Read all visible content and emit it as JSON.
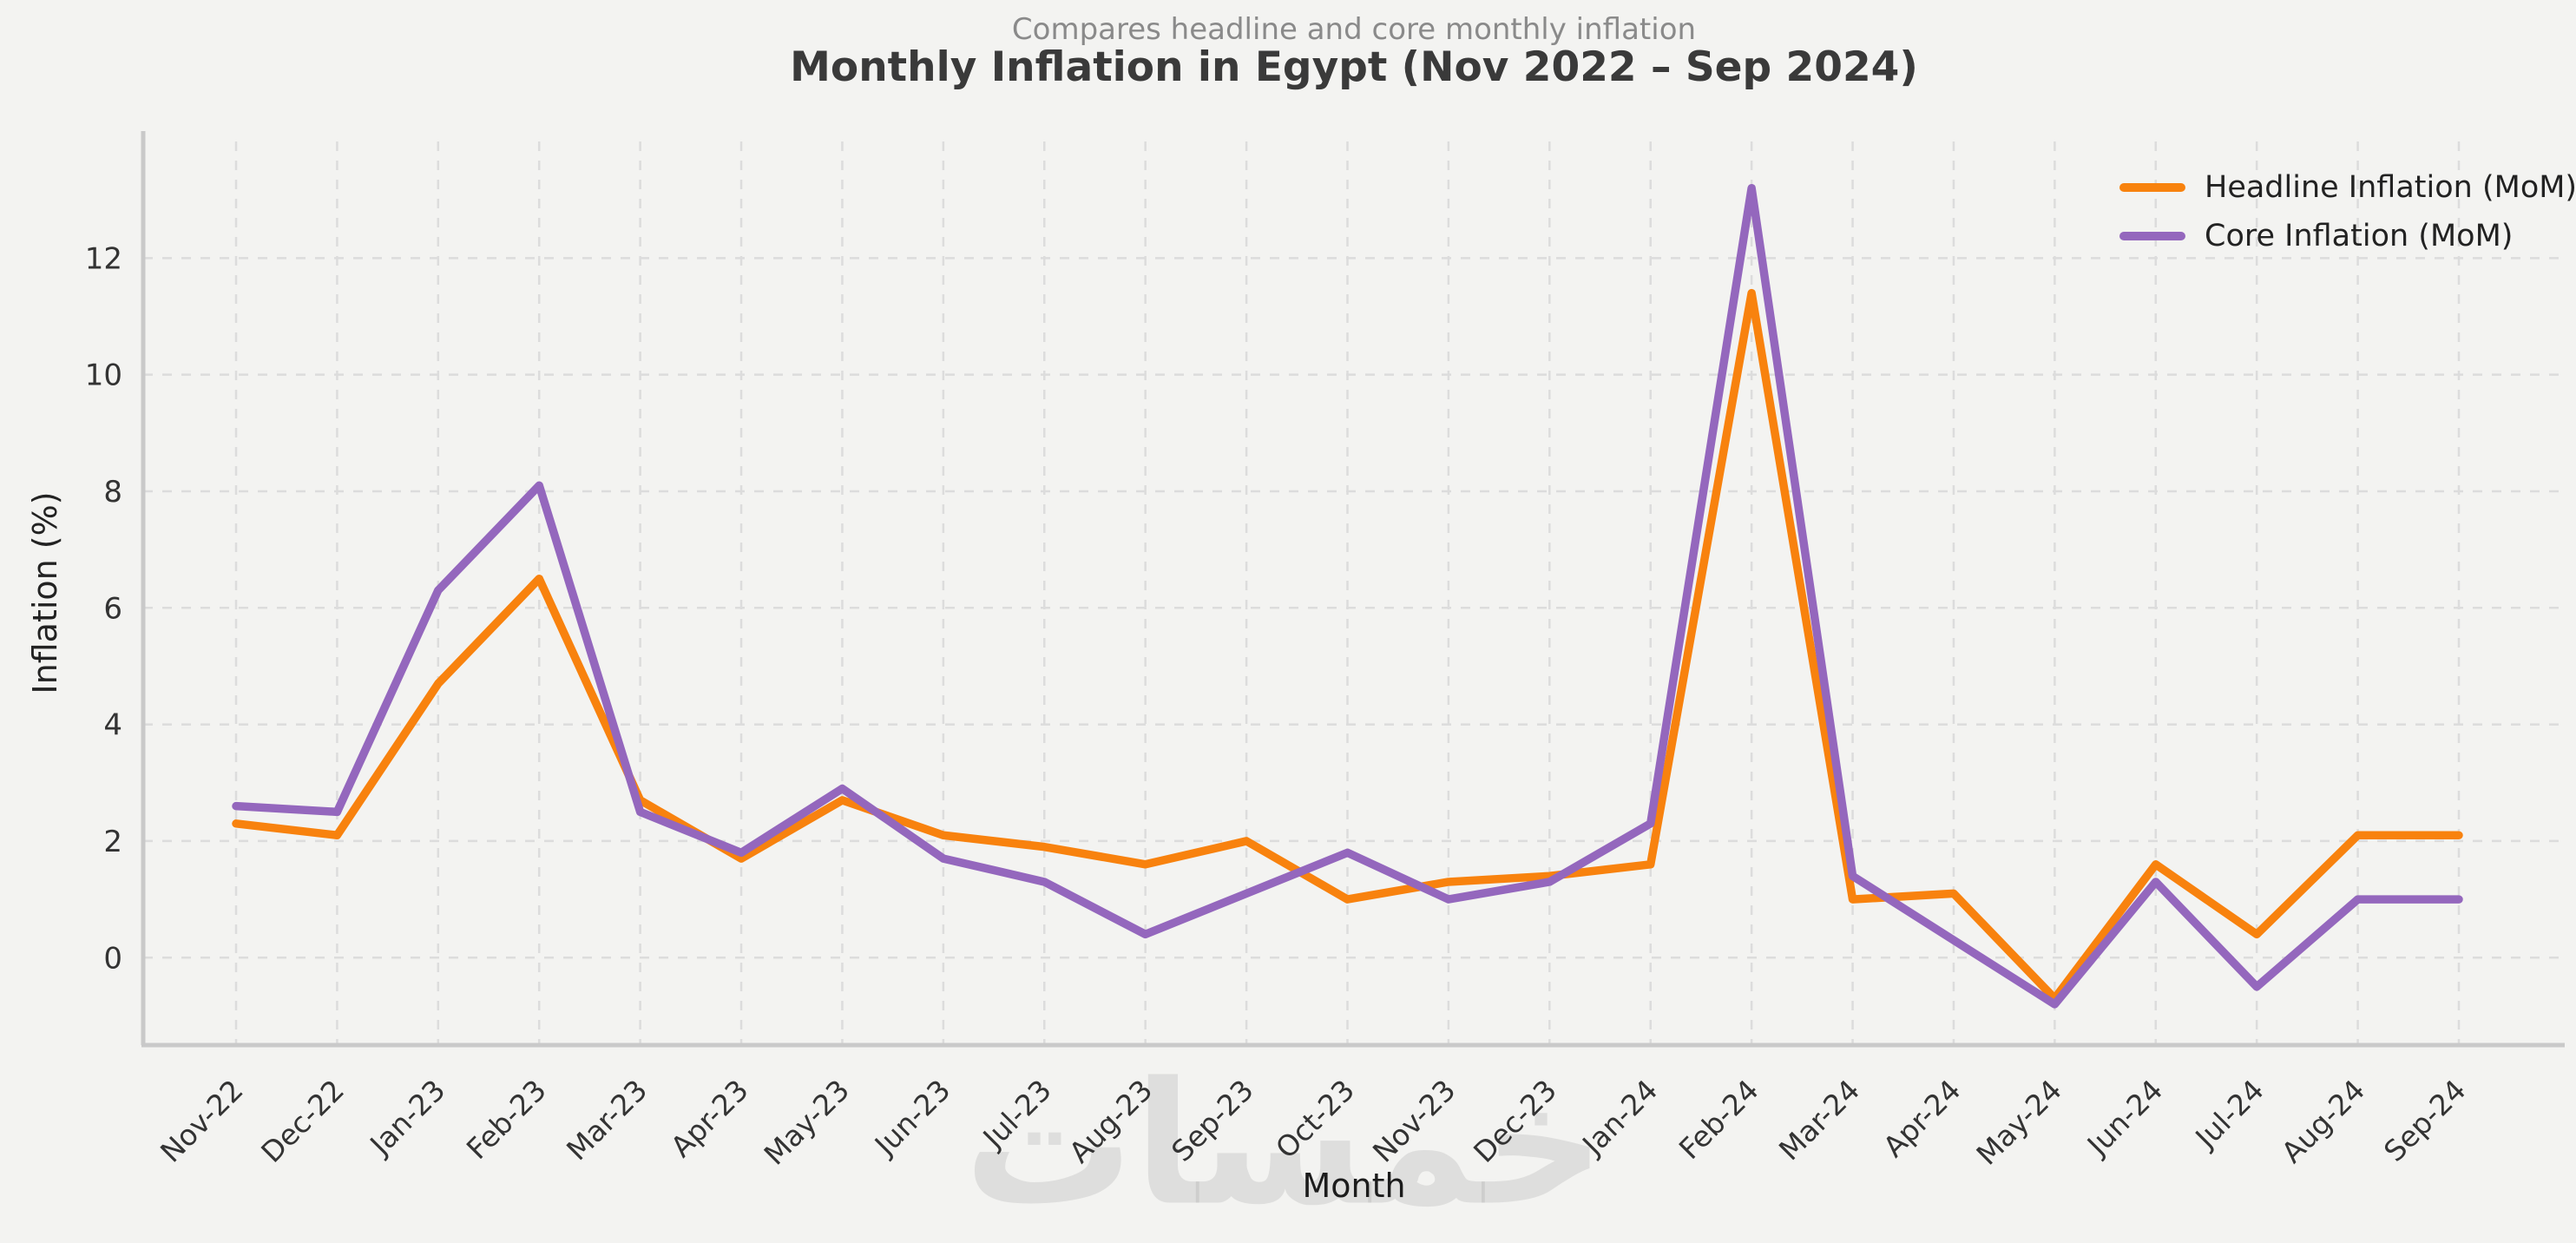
{
  "figure": {
    "watermark": "خمسات"
  },
  "chart_data": {
    "type": "line",
    "title": "Monthly Inflation in Egypt (Nov 2022 – Sep 2024)",
    "subtitle": "Compares headline and core monthly inflation",
    "xlabel": "Month",
    "ylabel": "Inflation (%)",
    "categories": [
      "Nov-22",
      "Dec-22",
      "Jan-23",
      "Feb-23",
      "Mar-23",
      "Apr-23",
      "May-23",
      "Jun-23",
      "Jul-23",
      "Aug-23",
      "Sep-23",
      "Oct-23",
      "Nov-23",
      "Dec-23",
      "Jan-24",
      "Feb-24",
      "Mar-24",
      "Apr-24",
      "May-24",
      "Jun-24",
      "Jul-24",
      "Aug-24",
      "Sep-24"
    ],
    "series": [
      {
        "name": "Headline Inflation (MoM)",
        "color": "#f8820e",
        "values": [
          2.3,
          2.1,
          4.7,
          6.5,
          2.7,
          1.7,
          2.7,
          2.1,
          1.9,
          1.6,
          2.0,
          1.0,
          1.3,
          1.4,
          1.6,
          11.4,
          1.0,
          1.1,
          -0.7,
          1.6,
          0.4,
          2.1,
          2.1
        ]
      },
      {
        "name": "Core Inflation (MoM)",
        "color": "#9467bd",
        "values": [
          2.6,
          2.5,
          6.3,
          8.1,
          2.5,
          1.8,
          2.9,
          1.7,
          1.3,
          0.4,
          1.1,
          1.8,
          1.0,
          1.3,
          2.3,
          13.2,
          1.4,
          0.3,
          -0.8,
          1.3,
          -0.5,
          1.0,
          1.0
        ]
      }
    ],
    "ylim": [
      -1.5,
      14.0
    ],
    "yticks": [
      0,
      2,
      4,
      6,
      8,
      10,
      12
    ],
    "grid": true,
    "grid_style": "dashed",
    "legend_position": "top-right",
    "x_tick_rotation": 45
  },
  "style": {
    "background": "#f3f3f1",
    "grid_color": "#dcdcdc",
    "spine_color": "#c9c9c9",
    "tick_label_color": "#333333",
    "title_color": "#3a3a3a",
    "subtitle_color": "#8a8a8a"
  }
}
